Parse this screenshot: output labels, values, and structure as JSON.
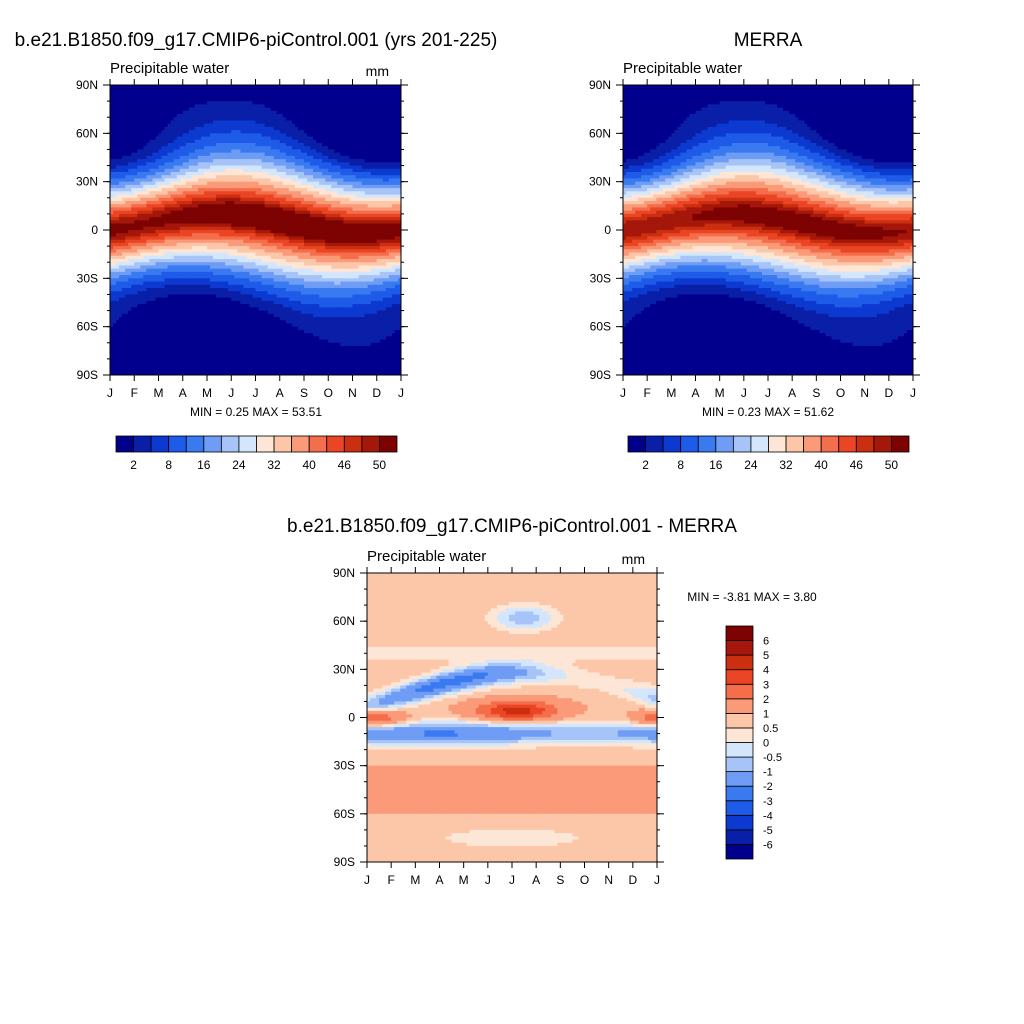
{
  "chart_data": [
    {
      "type": "heatmap",
      "title": "b.e21.B1850.f09_g17.CMIP6-piControl.001 (yrs 201-225)",
      "left_label": "Precipitable water",
      "right_label": "mm",
      "x_tick_labels": [
        "J",
        "F",
        "M",
        "A",
        "M",
        "J",
        "J",
        "A",
        "S",
        "O",
        "N",
        "D",
        "J"
      ],
      "y_tick_labels": [
        "90N",
        "60N",
        "30N",
        "0",
        "30S",
        "60S",
        "90S"
      ],
      "x_range": [
        0,
        12
      ],
      "y_range": [
        90,
        -90
      ],
      "stats_text": "MIN =   0.25 MAX =  53.51",
      "min": 0.25,
      "max": 53.51,
      "shape": "climo",
      "params": {
        "eq_amp": 50.5,
        "ns_shift": 0,
        "polar_n": 5,
        "polar_s": 1,
        "itcz_boost": 4.5
      },
      "levels": [
        2,
        5,
        8,
        12,
        16,
        20,
        24,
        28,
        32,
        36,
        40,
        43,
        46,
        48,
        50
      ],
      "colorbar_labels": [
        "2",
        "8",
        "16",
        "24",
        "32",
        "40",
        "46",
        "50"
      ]
    },
    {
      "type": "heatmap",
      "title": "MERRA",
      "left_label": "Precipitable water",
      "right_label": "",
      "x_tick_labels": [
        "J",
        "F",
        "M",
        "A",
        "M",
        "J",
        "J",
        "A",
        "S",
        "O",
        "N",
        "D",
        "J"
      ],
      "y_tick_labels": [
        "90N",
        "60N",
        "30N",
        "0",
        "30S",
        "60S",
        "90S"
      ],
      "x_range": [
        0,
        12
      ],
      "y_range": [
        90,
        -90
      ],
      "stats_text": "MIN =   0.23 MAX =  51.62",
      "min": 0.23,
      "max": 51.62,
      "shape": "climo",
      "params": {
        "eq_amp": 49.5,
        "ns_shift": 0,
        "polar_n": 3,
        "polar_s": 1,
        "itcz_boost": 3.0
      },
      "levels": [
        2,
        5,
        8,
        12,
        16,
        20,
        24,
        28,
        32,
        36,
        40,
        43,
        46,
        48,
        50
      ],
      "colorbar_labels": [
        "2",
        "8",
        "16",
        "24",
        "32",
        "40",
        "46",
        "50"
      ]
    },
    {
      "type": "heatmap",
      "title": "b.e21.B1850.f09_g17.CMIP6-piControl.001 - MERRA",
      "left_label": "Precipitable water",
      "right_label": "mm",
      "x_tick_labels": [
        "J",
        "F",
        "M",
        "A",
        "M",
        "J",
        "J",
        "A",
        "S",
        "O",
        "N",
        "D",
        "J"
      ],
      "y_tick_labels": [
        "90N",
        "60N",
        "30N",
        "0",
        "30S",
        "60S",
        "90S"
      ],
      "x_range": [
        0,
        12
      ],
      "y_range": [
        90,
        -90
      ],
      "stats_text": "MIN =  -3.81 MAX =   3.80",
      "min": -3.81,
      "max": 3.8,
      "shape": "diff",
      "levels": [
        -6,
        -5,
        -4,
        -3,
        -2,
        -1,
        -0.5,
        0,
        0.5,
        1,
        2,
        3,
        4,
        5,
        6
      ],
      "colorbar_labels": [
        "-6",
        "-5",
        "-4",
        "-3",
        "-2",
        "-1",
        "-0.5",
        "0",
        "0.5",
        "1",
        "2",
        "3",
        "4",
        "5",
        "6"
      ]
    }
  ],
  "colormap": [
    "#00008c",
    "#0a1fa8",
    "#0c3ad0",
    "#1e5be8",
    "#3a7af0",
    "#6f9cf4",
    "#a6c4f7",
    "#d4e6fb",
    "#fde6d6",
    "#fcc7a9",
    "#fb9a78",
    "#f46e4c",
    "#ea4524",
    "#cc2e10",
    "#a4170a",
    "#7d0303"
  ]
}
